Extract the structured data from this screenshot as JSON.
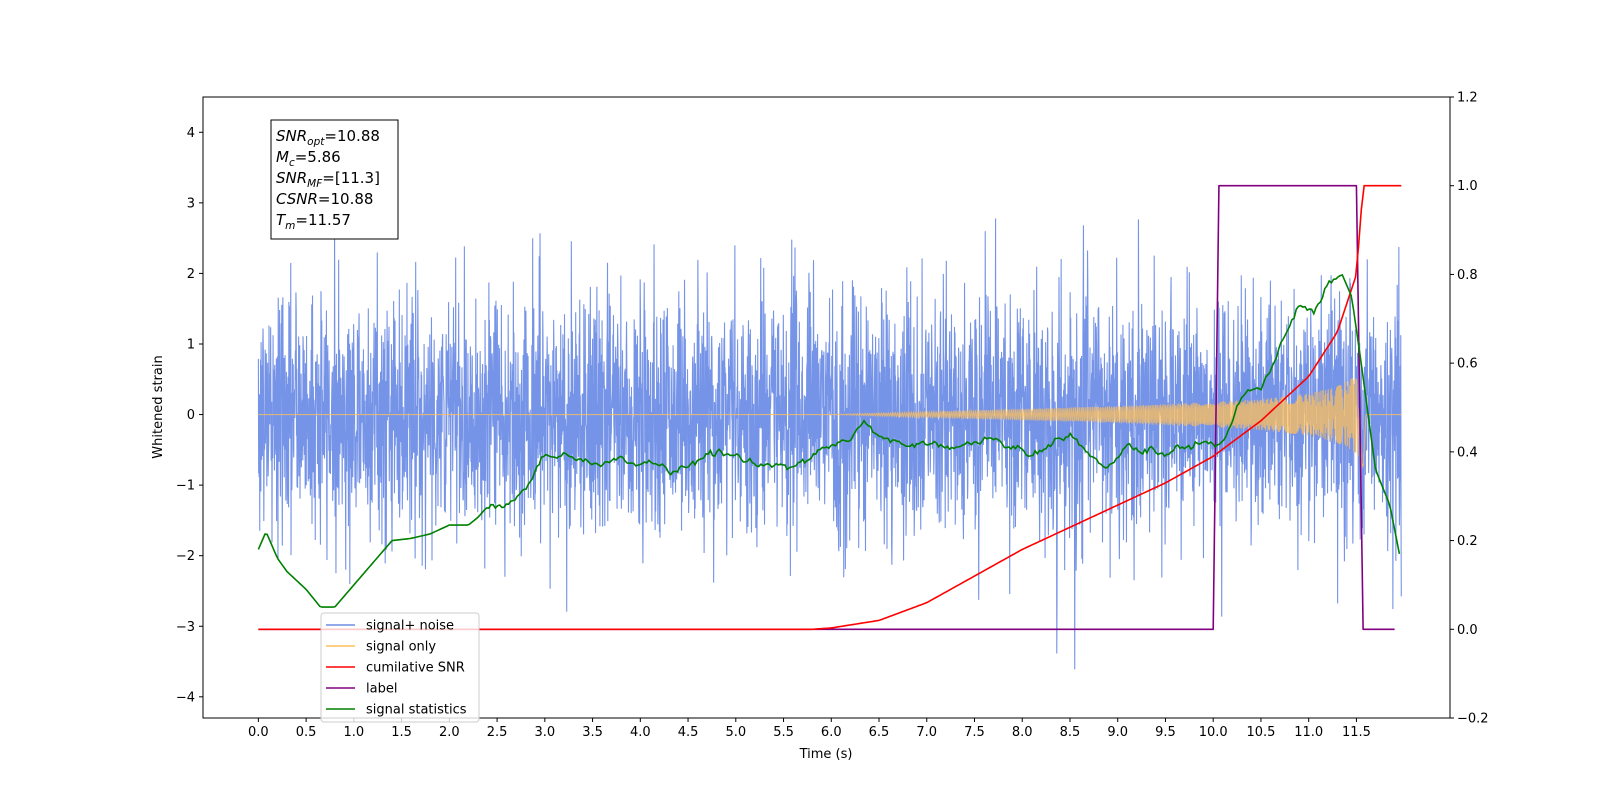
{
  "chart_data": {
    "type": "line",
    "xlabel": "Time (s)",
    "ylabel": "Whitened strain",
    "xlim": [
      -0.58,
      12.48
    ],
    "ylim": [
      -4.3,
      4.5
    ],
    "y2lim": [
      -0.2,
      1.2
    ],
    "x_ticks": [
      "0.0",
      "0.5",
      "1.0",
      "1.5",
      "2.0",
      "2.5",
      "3.0",
      "3.5",
      "4.0",
      "4.5",
      "5.0",
      "5.5",
      "6.0",
      "6.5",
      "7.0",
      "7.5",
      "8.0",
      "8.5",
      "9.0",
      "9.5",
      "10.0",
      "10.5",
      "11.0",
      "11.5"
    ],
    "y_ticks": [
      "−4",
      "−3",
      "−2",
      "−1",
      "0",
      "1",
      "2",
      "3",
      "4"
    ],
    "y2_ticks": [
      "−0.2",
      "0.0",
      "0.2",
      "0.4",
      "0.6",
      "0.8",
      "1.0",
      "1.2"
    ],
    "annotation": [
      {
        "symbol": "SNR",
        "sub": "opt",
        "value": "=10.88"
      },
      {
        "symbol": "M",
        "sub": "c",
        "value": "=5.86"
      },
      {
        "symbol": "SNR",
        "sub": "MF",
        "value": "=[11.3]"
      },
      {
        "symbol": "CSNR",
        "sub": "",
        "value": "=10.88"
      },
      {
        "symbol": "T",
        "sub": "m",
        "value": "=11.57"
      }
    ],
    "legend_position": "lower-left",
    "legend": [
      {
        "label": "signal+ noise",
        "color": "#6f8ee6"
      },
      {
        "label": "signal only",
        "color": "#ffbf5a"
      },
      {
        "label": "cumilative SNR",
        "color": "#ff0000"
      },
      {
        "label": "label",
        "color": "#800080"
      },
      {
        "label": "signal statistics",
        "color": "#008000"
      }
    ],
    "series": [
      {
        "name": "signal+ noise",
        "axis": "left",
        "color": "#6f8ee6",
        "kind": "noise-band",
        "x_range": [
          0,
          11.97
        ],
        "noise_std": 0.85,
        "envelope_sigma": 1.0
      },
      {
        "name": "signal only",
        "axis": "left",
        "color": "#ffbf5a",
        "kind": "chirp",
        "x_range": [
          0,
          11.97
        ],
        "merger_time": 11.57,
        "envelope": {
          "x": [
            0.0,
            6.0,
            7.0,
            8.0,
            9.0,
            10.0,
            10.5,
            11.0,
            11.3,
            11.5,
            11.57,
            11.6,
            11.97
          ],
          "y": [
            0.0,
            0.0,
            0.04,
            0.08,
            0.12,
            0.18,
            0.22,
            0.3,
            0.4,
            0.55,
            0.9,
            0.0,
            0.0
          ]
        }
      },
      {
        "name": "cumilative SNR",
        "axis": "right",
        "color": "#ff0000",
        "x": [
          0.0,
          5.8,
          6.0,
          6.5,
          7.0,
          7.5,
          8.0,
          8.5,
          9.0,
          9.5,
          10.0,
          10.5,
          11.0,
          11.3,
          11.5,
          11.57,
          11.97
        ],
        "y": [
          0.0,
          0.0,
          0.003,
          0.02,
          0.06,
          0.12,
          0.18,
          0.23,
          0.28,
          0.33,
          0.39,
          0.47,
          0.57,
          0.67,
          0.8,
          1.0,
          1.0
        ]
      },
      {
        "name": "label",
        "axis": "right",
        "color": "#800080",
        "x": [
          0.0,
          10.0,
          10.06,
          11.5,
          11.57,
          11.9
        ],
        "y": [
          0.0,
          0.0,
          1.0,
          1.0,
          0.0,
          0.0
        ]
      },
      {
        "name": "signal statistics",
        "axis": "right",
        "color": "#008000",
        "x": [
          0.0,
          0.08,
          0.2,
          0.3,
          0.5,
          0.65,
          0.8,
          1.0,
          1.2,
          1.4,
          1.6,
          1.8,
          2.0,
          2.2,
          2.4,
          2.6,
          2.8,
          3.0,
          3.2,
          3.4,
          3.6,
          3.8,
          4.0,
          4.2,
          4.4,
          4.6,
          4.8,
          5.0,
          5.2,
          5.4,
          5.6,
          5.8,
          6.0,
          6.2,
          6.35,
          6.5,
          6.7,
          6.9,
          7.1,
          7.3,
          7.5,
          7.7,
          7.9,
          8.1,
          8.3,
          8.5,
          8.7,
          8.9,
          9.1,
          9.3,
          9.5,
          9.7,
          9.9,
          10.1,
          10.3,
          10.5,
          10.7,
          10.9,
          11.05,
          11.2,
          11.35,
          11.45,
          11.55,
          11.7,
          11.85,
          11.95
        ],
        "y": [
          0.18,
          0.22,
          0.16,
          0.13,
          0.09,
          0.05,
          0.05,
          0.1,
          0.15,
          0.2,
          0.205,
          0.215,
          0.235,
          0.235,
          0.27,
          0.28,
          0.32,
          0.39,
          0.4,
          0.37,
          0.37,
          0.38,
          0.37,
          0.37,
          0.35,
          0.38,
          0.4,
          0.39,
          0.38,
          0.37,
          0.37,
          0.39,
          0.415,
          0.43,
          0.47,
          0.44,
          0.42,
          0.41,
          0.42,
          0.41,
          0.42,
          0.43,
          0.41,
          0.4,
          0.42,
          0.44,
          0.39,
          0.37,
          0.41,
          0.4,
          0.4,
          0.41,
          0.42,
          0.42,
          0.53,
          0.54,
          0.65,
          0.73,
          0.72,
          0.78,
          0.8,
          0.75,
          0.6,
          0.36,
          0.28,
          0.17
        ]
      }
    ]
  }
}
